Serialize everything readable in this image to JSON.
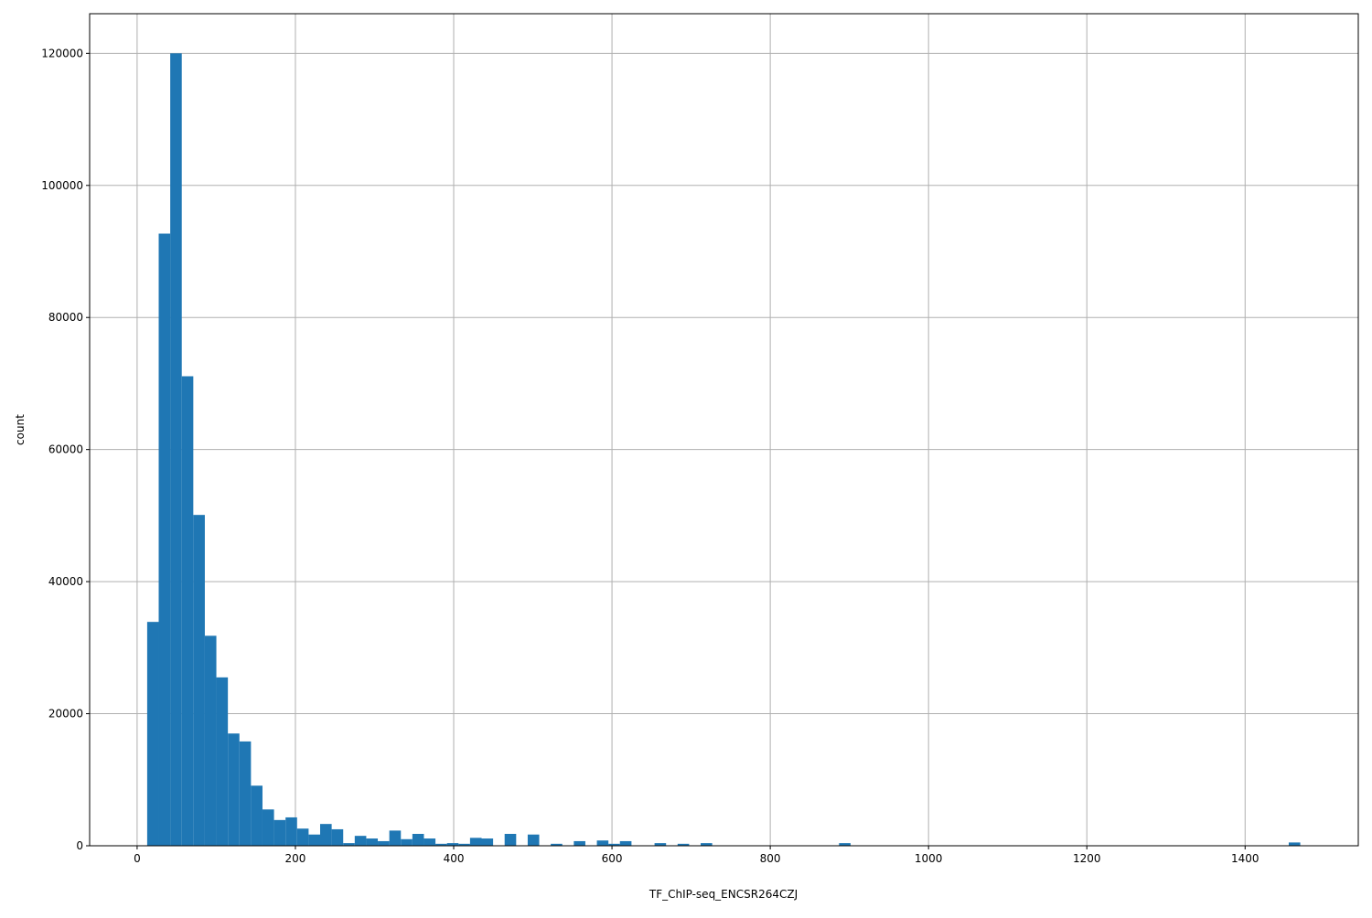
{
  "chart_data": {
    "type": "bar",
    "histogram": true,
    "title": "",
    "xlabel": "TF_ChIP-seq_ENCSR264CZJ",
    "ylabel": "count",
    "xlim": [
      -60,
      1543
    ],
    "ylim": [
      0,
      126000
    ],
    "grid": true,
    "bar_color": "#1f77b4",
    "bin_start": 12.7,
    "bin_width": 14.57,
    "xticks": [
      0,
      200,
      400,
      600,
      800,
      1000,
      1200,
      1400
    ],
    "yticks": [
      0,
      20000,
      40000,
      60000,
      80000,
      100000,
      120000
    ],
    "values": [
      33900,
      92700,
      120000,
      71100,
      50100,
      31800,
      25500,
      17000,
      15800,
      9100,
      5500,
      3900,
      4300,
      2600,
      1700,
      3300,
      2500,
      400,
      1500,
      1100,
      700,
      2300,
      1000,
      1800,
      1100,
      300,
      400,
      300,
      1200,
      1100,
      0,
      1800,
      0,
      1700,
      0,
      300,
      0,
      700,
      0,
      800,
      300,
      700,
      0,
      0,
      400,
      0,
      300,
      0,
      400,
      0,
      0,
      0,
      0,
      0,
      0,
      0,
      0,
      0,
      0,
      0,
      400,
      0,
      0,
      0,
      0,
      0,
      0,
      0,
      0,
      0,
      0,
      0,
      0,
      0,
      0,
      0,
      0,
      0,
      0,
      0,
      0,
      0,
      0,
      0,
      0,
      0,
      0,
      0,
      0,
      0,
      0,
      0,
      0,
      0,
      0,
      0,
      0,
      0,
      0,
      500
    ]
  }
}
